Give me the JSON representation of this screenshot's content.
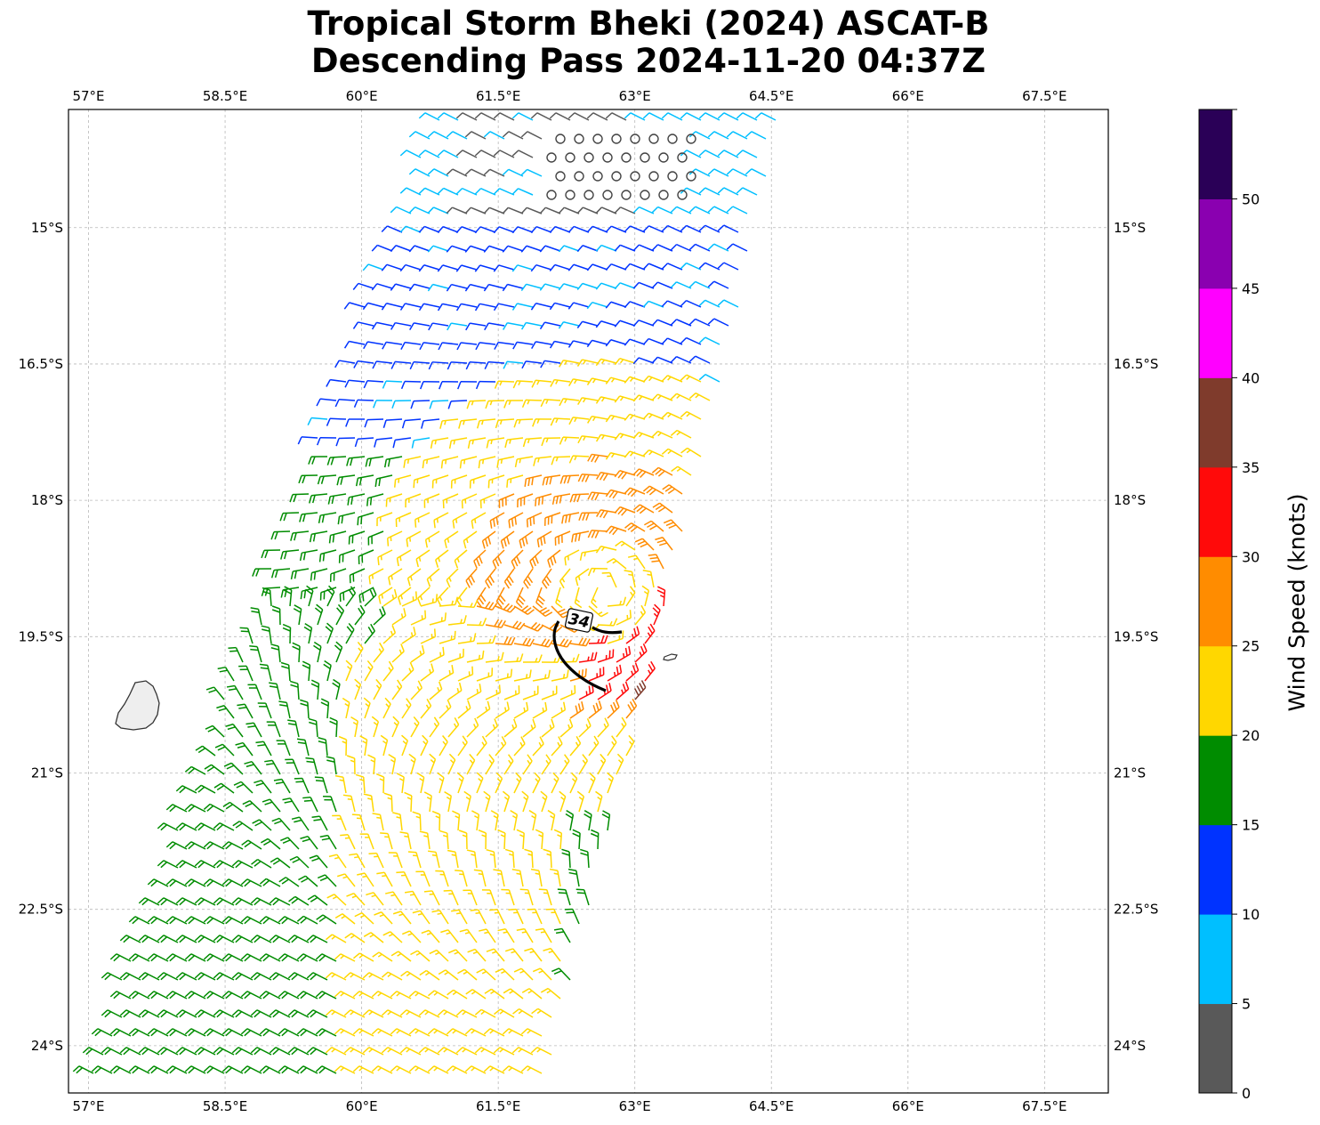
{
  "title_line1": "Tropical Storm Bheki (2024) ASCAT-B",
  "title_line2": "Descending Pass 2024-11-20 04:37Z",
  "map": {
    "lon_ticks": [
      {
        "value": 57.0,
        "label": "57°E"
      },
      {
        "value": 58.5,
        "label": "58.5°E"
      },
      {
        "value": 60.0,
        "label": "60°E"
      },
      {
        "value": 61.5,
        "label": "61.5°E"
      },
      {
        "value": 63.0,
        "label": "63°E"
      },
      {
        "value": 64.5,
        "label": "64.5°E"
      },
      {
        "value": 66.0,
        "label": "66°E"
      },
      {
        "value": 67.5,
        "label": "67.5°E"
      }
    ],
    "lat_ticks": [
      {
        "value": -15.0,
        "label": "15°S"
      },
      {
        "value": -16.5,
        "label": "16.5°S"
      },
      {
        "value": -18.0,
        "label": "18°S"
      },
      {
        "value": -19.5,
        "label": "19.5°S"
      },
      {
        "value": -21.0,
        "label": "21°S"
      },
      {
        "value": -22.5,
        "label": "22.5°S"
      },
      {
        "value": -24.0,
        "label": "24°S"
      }
    ],
    "lon_range": [
      56.78,
      68.2
    ],
    "lat_range": [
      -24.52,
      -13.7
    ],
    "gridlines": true,
    "storm_center": {
      "lon": 62.7,
      "lat": -19.0
    },
    "wind_contour_label": "34",
    "colorbar": {
      "label": "Wind Speed (knots)",
      "ticks": [
        "0",
        "5",
        "10",
        "15",
        "20",
        "25",
        "30",
        "35",
        "40",
        "45",
        "50"
      ],
      "colors": [
        "#595959",
        "#00bfff",
        "#0033ff",
        "#008c00",
        "#ffd700",
        "#ff8c00",
        "#ff0a0a",
        "#7f3b2c",
        "#ff00ff",
        "#8a00b0",
        "#2a0057"
      ]
    }
  }
}
